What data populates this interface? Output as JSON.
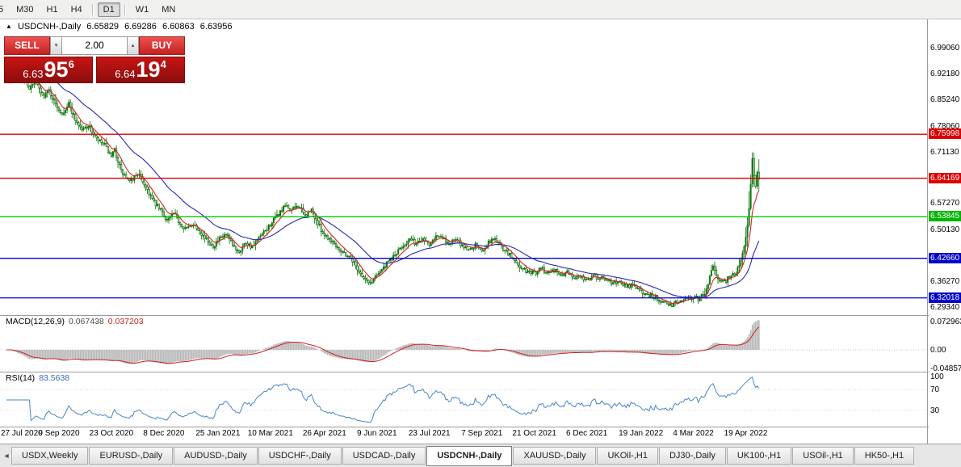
{
  "toolbar": {
    "items": [
      "5",
      "M30",
      "H1",
      "H4",
      "D1",
      "W1",
      "MN"
    ],
    "active": "D1"
  },
  "icons": {
    "collapse": "▲",
    "spin_up": "▴",
    "spin_down": "▾",
    "tab_scroll_left": "◄"
  },
  "chart_header": {
    "symbol": "USDCNH-,Daily",
    "open": "6.65829",
    "high": "6.69286",
    "low": "6.60863",
    "close": "6.63956"
  },
  "trade_panel": {
    "sell_label": "SELL",
    "buy_label": "BUY",
    "volume": "2.00",
    "sell": {
      "whole": "6.63",
      "big": "95",
      "sup": "6"
    },
    "buy": {
      "whole": "6.64",
      "big": "19",
      "sup": "4"
    }
  },
  "price_axis": {
    "labels": [
      {
        "text": "6.99060",
        "value": 6.9906
      },
      {
        "text": "6.92180",
        "value": 6.9218
      },
      {
        "text": "6.85240",
        "value": 6.8524
      },
      {
        "text": "6.78060",
        "value": 6.7806
      },
      {
        "text": "6.71130",
        "value": 6.7113
      },
      {
        "text": "6.57270",
        "value": 6.5727
      },
      {
        "text": "6.50130",
        "value": 6.5013
      },
      {
        "text": "6.36270",
        "value": 6.3627
      },
      {
        "text": "6.29340",
        "value": 6.2934
      }
    ],
    "badges": [
      {
        "text": "6.75998",
        "value": 6.75998,
        "color": "#dd0000"
      },
      {
        "text": "6.64169",
        "value": 6.64169,
        "color": "#dd0000"
      },
      {
        "text": "6.53845",
        "value": 6.53845,
        "color": "#00b400"
      },
      {
        "text": "6.42660",
        "value": 6.4266,
        "color": "#0000c8"
      },
      {
        "text": "6.32018",
        "value": 6.32018,
        "color": "#0000c8"
      }
    ]
  },
  "macd_panel": {
    "label": "MACD(12,26,9)",
    "value": "0.067438",
    "signal_value": "0.037203",
    "axis": [
      {
        "text": "0.072963",
        "value": 0.072963
      },
      {
        "text": "0.00",
        "value": 0
      },
      {
        "text": "-0.04857",
        "value": -0.04857
      }
    ]
  },
  "rsi_panel": {
    "label": "RSI(14)",
    "value": "83.5638",
    "axis": [
      {
        "text": "100",
        "value": 100
      },
      {
        "text": "70",
        "value": 70
      },
      {
        "text": "30",
        "value": 30
      }
    ]
  },
  "time_axis": {
    "labels": [
      {
        "text": "27 Jul 2020",
        "bar": 0
      },
      {
        "text": "9 Sep 2020",
        "bar": 32
      },
      {
        "text": "23 Oct 2020",
        "bar": 64
      },
      {
        "text": "8 Dec 2020",
        "bar": 96
      },
      {
        "text": "25 Jan 2021",
        "bar": 129
      },
      {
        "text": "10 Mar 2021",
        "bar": 161
      },
      {
        "text": "26 Apr 2021",
        "bar": 194
      },
      {
        "text": "9 Jun 2021",
        "bar": 226
      },
      {
        "text": "23 Jul 2021",
        "bar": 258
      },
      {
        "text": "7 Sep 2021",
        "bar": 290
      },
      {
        "text": "21 Oct 2021",
        "bar": 322
      },
      {
        "text": "6 Dec 2021",
        "bar": 354
      },
      {
        "text": "19 Jan 2022",
        "bar": 387
      },
      {
        "text": "4 Mar 2022",
        "bar": 419
      },
      {
        "text": "19 Apr 2022",
        "bar": 451
      }
    ]
  },
  "tabs": {
    "items": [
      "USDX,Weekly",
      "EURUSD-,Daily",
      "AUDUSD-,Daily",
      "USDCHF-,Daily",
      "USDCAD-,Daily",
      "USDCNH-,Daily",
      "XAUUSD-,Daily",
      "UKOil-,H1",
      "DJ30-,Daily",
      "UK100-,H1",
      "USOil-,H1",
      "HK50-,H1"
    ],
    "active": "USDCNH-,Daily"
  },
  "chart_data": {
    "type": "candlestick",
    "symbol": "USDCNH",
    "timeframe": "Daily",
    "title": "USDCNH-,Daily",
    "x_range": [
      "27 Jul 2020",
      "early May 2022"
    ],
    "y_range": [
      6.2934,
      6.9906
    ],
    "bars": 460,
    "last_ohlc": {
      "open": 6.65829,
      "high": 6.69286,
      "low": 6.60863,
      "close": 6.63956
    },
    "spike_bar": 455,
    "spike_high": 6.7113,
    "levels": [
      {
        "price": 6.75998,
        "color": "#e00000"
      },
      {
        "price": 6.64169,
        "color": "#e00000"
      },
      {
        "price": 6.53845,
        "color": "#00c400"
      },
      {
        "price": 6.4266,
        "color": "#0000c8"
      },
      {
        "price": 6.32018,
        "color": "#1414d2"
      }
    ],
    "price_path": [
      [
        0,
        6.99
      ],
      [
        5,
        6.958
      ],
      [
        10,
        6.92
      ],
      [
        14,
        6.885
      ],
      [
        18,
        6.9
      ],
      [
        22,
        6.862
      ],
      [
        26,
        6.878
      ],
      [
        30,
        6.84
      ],
      [
        34,
        6.816
      ],
      [
        38,
        6.842
      ],
      [
        42,
        6.8
      ],
      [
        46,
        6.772
      ],
      [
        50,
        6.784
      ],
      [
        55,
        6.746
      ],
      [
        60,
        6.73
      ],
      [
        64,
        6.697
      ],
      [
        66,
        6.718
      ],
      [
        70,
        6.66
      ],
      [
        75,
        6.63
      ],
      [
        80,
        6.656
      ],
      [
        85,
        6.62
      ],
      [
        90,
        6.576
      ],
      [
        94,
        6.556
      ],
      [
        98,
        6.53
      ],
      [
        102,
        6.546
      ],
      [
        106,
        6.52
      ],
      [
        110,
        6.506
      ],
      [
        114,
        6.52
      ],
      [
        118,
        6.5
      ],
      [
        122,
        6.476
      ],
      [
        126,
        6.46
      ],
      [
        130,
        6.478
      ],
      [
        134,
        6.49
      ],
      [
        138,
        6.46
      ],
      [
        142,
        6.446
      ],
      [
        146,
        6.47
      ],
      [
        150,
        6.456
      ],
      [
        154,
        6.48
      ],
      [
        158,
        6.5
      ],
      [
        162,
        6.524
      ],
      [
        166,
        6.546
      ],
      [
        170,
        6.566
      ],
      [
        174,
        6.556
      ],
      [
        178,
        6.57
      ],
      [
        182,
        6.54
      ],
      [
        186,
        6.556
      ],
      [
        190,
        6.52
      ],
      [
        194,
        6.49
      ],
      [
        198,
        6.476
      ],
      [
        202,
        6.458
      ],
      [
        206,
        6.44
      ],
      [
        210,
        6.428
      ],
      [
        214,
        6.4
      ],
      [
        218,
        6.372
      ],
      [
        222,
        6.358
      ],
      [
        226,
        6.386
      ],
      [
        230,
        6.4
      ],
      [
        234,
        6.422
      ],
      [
        238,
        6.44
      ],
      [
        242,
        6.462
      ],
      [
        246,
        6.476
      ],
      [
        250,
        6.466
      ],
      [
        254,
        6.482
      ],
      [
        258,
        6.466
      ],
      [
        262,
        6.49
      ],
      [
        266,
        6.48
      ],
      [
        270,
        6.466
      ],
      [
        274,
        6.476
      ],
      [
        278,
        6.46
      ],
      [
        282,
        6.45
      ],
      [
        286,
        6.462
      ],
      [
        290,
        6.446
      ],
      [
        294,
        6.47
      ],
      [
        298,
        6.48
      ],
      [
        302,
        6.456
      ],
      [
        306,
        6.44
      ],
      [
        310,
        6.42
      ],
      [
        314,
        6.4
      ],
      [
        318,
        6.39
      ],
      [
        322,
        6.386
      ],
      [
        326,
        6.4
      ],
      [
        330,
        6.39
      ],
      [
        334,
        6.396
      ],
      [
        338,
        6.38
      ],
      [
        342,
        6.39
      ],
      [
        346,
        6.376
      ],
      [
        350,
        6.38
      ],
      [
        354,
        6.37
      ],
      [
        358,
        6.38
      ],
      [
        362,
        6.374
      ],
      [
        366,
        6.368
      ],
      [
        370,
        6.36
      ],
      [
        374,
        6.366
      ],
      [
        378,
        6.35
      ],
      [
        382,
        6.356
      ],
      [
        386,
        6.34
      ],
      [
        390,
        6.33
      ],
      [
        394,
        6.326
      ],
      [
        398,
        6.316
      ],
      [
        402,
        6.308
      ],
      [
        406,
        6.302
      ],
      [
        410,
        6.312
      ],
      [
        414,
        6.318
      ],
      [
        418,
        6.322
      ],
      [
        422,
        6.318
      ],
      [
        426,
        6.33
      ],
      [
        429,
        6.38
      ],
      [
        431,
        6.405
      ],
      [
        433,
        6.376
      ],
      [
        435,
        6.36
      ],
      [
        437,
        6.372
      ],
      [
        439,
        6.368
      ],
      [
        441,
        6.376
      ],
      [
        443,
        6.38
      ],
      [
        445,
        6.39
      ],
      [
        447,
        6.41
      ],
      [
        449,
        6.44
      ],
      [
        451,
        6.48
      ],
      [
        452,
        6.52
      ],
      [
        453,
        6.565
      ],
      [
        454,
        6.62
      ],
      [
        455,
        6.695
      ],
      [
        456,
        6.655
      ],
      [
        457,
        6.625
      ],
      [
        458,
        6.658
      ],
      [
        459,
        6.6396
      ]
    ],
    "moving_averages": [
      {
        "period": 8,
        "color": "#d42424"
      },
      {
        "period": 34,
        "color": "#2828b4"
      }
    ],
    "macd": {
      "fast": 12,
      "slow": 26,
      "signal": 9,
      "last": 0.067438,
      "last_signal": 0.037203,
      "y_axis": [
        0.072963,
        0,
        -0.04857
      ]
    },
    "rsi": {
      "period": 14,
      "last": 83.5638,
      "levels": [
        70,
        30
      ]
    }
  }
}
